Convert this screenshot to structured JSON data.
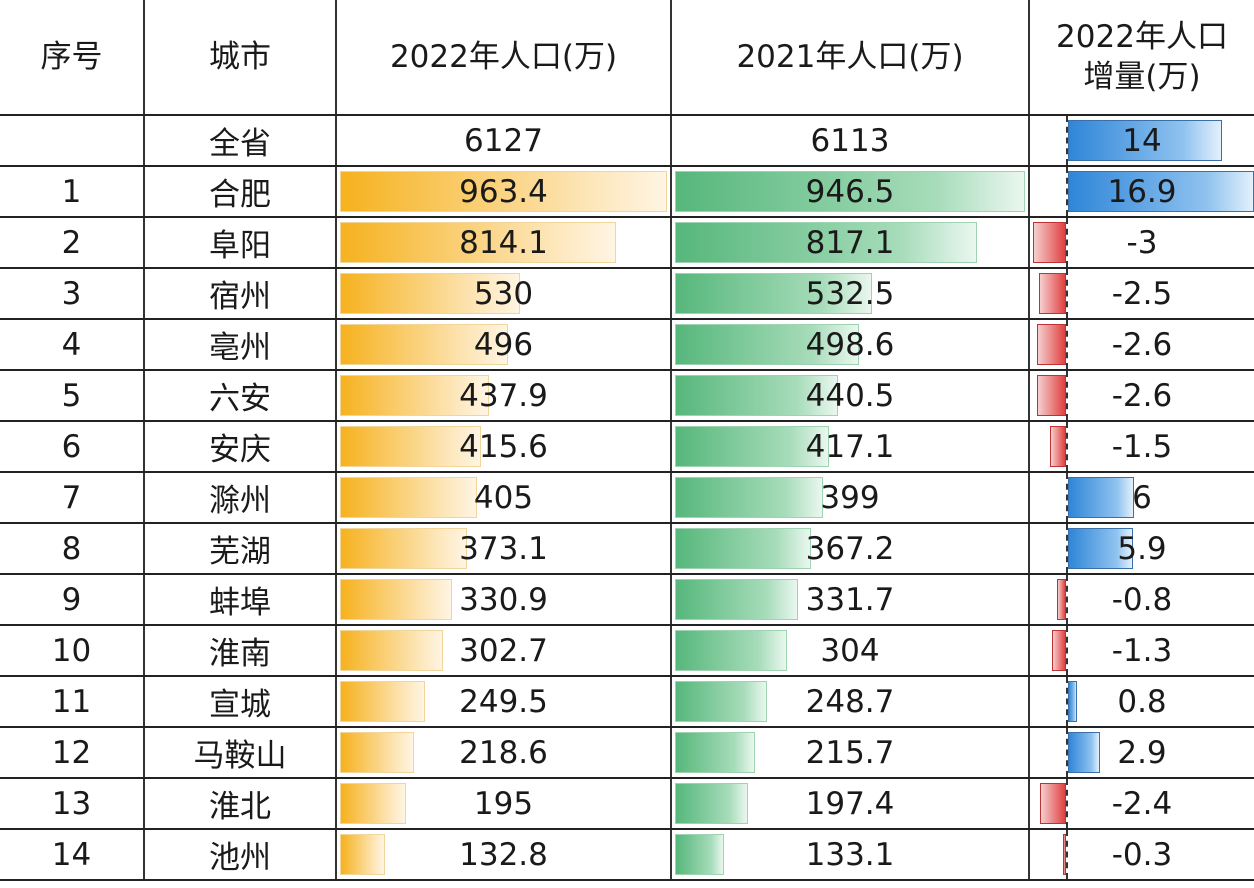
{
  "header": {
    "col_index": "序号",
    "col_city": "城市",
    "col_2022": "2022年人口(万)",
    "col_2021": "2021年人口(万)",
    "col_delta_line1": "2022年人口",
    "col_delta_line2": "增量(万)"
  },
  "colors": {
    "bar_2022": "#f6b21f",
    "bar_2021": "#56b77b",
    "bar_positive": "#2f86d8",
    "bar_negative": "#e04040"
  },
  "chart_data": {
    "type": "table",
    "columns": [
      "序号",
      "城市",
      "2022年人口(万)",
      "2021年人口(万)",
      "2022年人口增量(万)"
    ],
    "rows": [
      {
        "index": "",
        "city": "全省",
        "pop2022": "6127",
        "pop2021": "6113",
        "delta": "14"
      },
      {
        "index": "1",
        "city": "合肥",
        "pop2022": "963.4",
        "pop2021": "946.5",
        "delta": "16.9"
      },
      {
        "index": "2",
        "city": "阜阳",
        "pop2022": "814.1",
        "pop2021": "817.1",
        "delta": "-3"
      },
      {
        "index": "3",
        "city": "宿州",
        "pop2022": "530",
        "pop2021": "532.5",
        "delta": "-2.5"
      },
      {
        "index": "4",
        "city": "亳州",
        "pop2022": "496",
        "pop2021": "498.6",
        "delta": "-2.6"
      },
      {
        "index": "5",
        "city": "六安",
        "pop2022": "437.9",
        "pop2021": "440.5",
        "delta": "-2.6"
      },
      {
        "index": "6",
        "city": "安庆",
        "pop2022": "415.6",
        "pop2021": "417.1",
        "delta": "-1.5"
      },
      {
        "index": "7",
        "city": "滁州",
        "pop2022": "405",
        "pop2021": "399",
        "delta": "6"
      },
      {
        "index": "8",
        "city": "芜湖",
        "pop2022": "373.1",
        "pop2021": "367.2",
        "delta": "5.9"
      },
      {
        "index": "9",
        "city": "蚌埠",
        "pop2022": "330.9",
        "pop2021": "331.7",
        "delta": "-0.8"
      },
      {
        "index": "10",
        "city": "淮南",
        "pop2022": "302.7",
        "pop2021": "304",
        "delta": "-1.3"
      },
      {
        "index": "11",
        "city": "宣城",
        "pop2022": "249.5",
        "pop2021": "248.7",
        "delta": "0.8"
      },
      {
        "index": "12",
        "city": "马鞍山",
        "pop2022": "218.6",
        "pop2021": "215.7",
        "delta": "2.9"
      },
      {
        "index": "13",
        "city": "淮北",
        "pop2022": "195",
        "pop2021": "197.4",
        "delta": "-2.4"
      },
      {
        "index": "14",
        "city": "池州",
        "pop2022": "132.8",
        "pop2021": "133.1",
        "delta": "-0.3"
      }
    ]
  }
}
